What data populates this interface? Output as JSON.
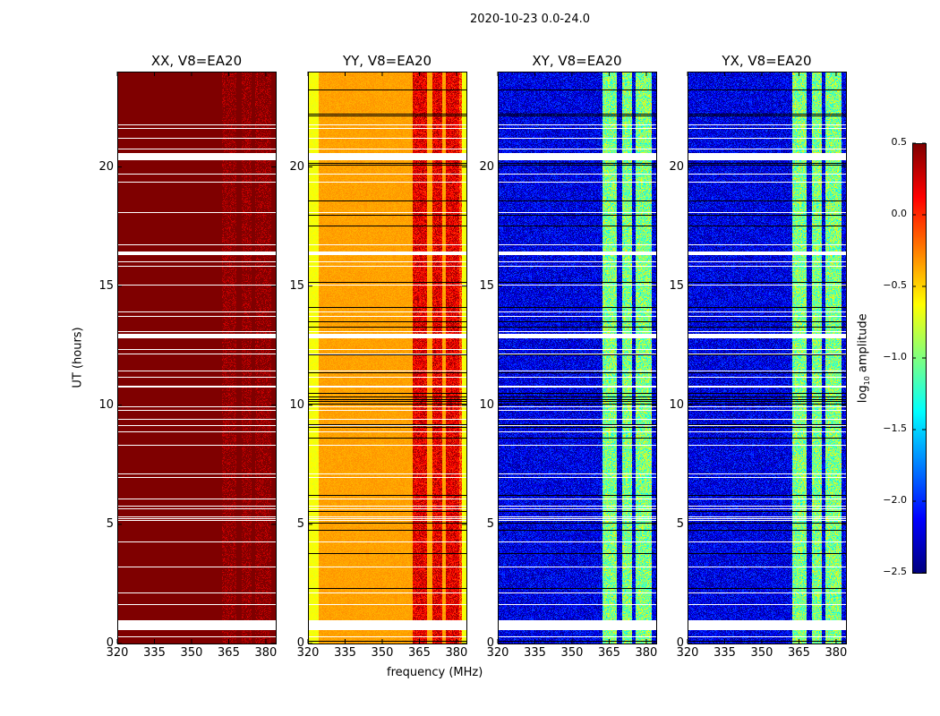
{
  "chart_data": {
    "type": "heatmap",
    "suptitle": "2020-10-23 0.0-24.0",
    "xlabel": "frequency (MHz)",
    "ylabel": "UT (hours)",
    "xlim": [
      320,
      384
    ],
    "ylim": [
      0,
      24
    ],
    "xticks": [
      "320",
      "335",
      "350",
      "365",
      "380"
    ],
    "yticks": [
      "0",
      "5",
      "10",
      "15",
      "20"
    ],
    "xtick_values": [
      320,
      335,
      350,
      365,
      380
    ],
    "ytick_values": [
      0,
      5,
      10,
      15,
      20
    ],
    "panels": [
      {
        "title": "XX, V8=EA20",
        "background_level": 0.5,
        "rfi_level": 0.5
      },
      {
        "title": "YY, V8=EA20",
        "background_level": -0.35,
        "rfi_level": 0.2
      },
      {
        "title": "XY, V8=EA20",
        "background_level": -2.2,
        "rfi_level": -1.0
      },
      {
        "title": "YX, V8=EA20",
        "background_level": -2.2,
        "rfi_level": -1.0
      }
    ],
    "rfi_band_mhz": [
      362,
      382
    ],
    "flagged_hours": [
      [
        0.55,
        0.95
      ],
      [
        20.3,
        20.6
      ],
      [
        12.8,
        13.0
      ],
      [
        16.3,
        16.45
      ]
    ],
    "colorbar": {
      "label": "log10 amplitude",
      "label_main": "log",
      "label_sub": "10",
      "label_rest": " amplitude",
      "colormap": "jet",
      "range": [
        -2.5,
        0.5
      ],
      "ticks": [
        "0.5",
        "0.0",
        "−0.5",
        "−1.0",
        "−1.5",
        "−2.0",
        "−2.5"
      ],
      "tick_values": [
        0.5,
        0.0,
        -0.5,
        -1.0,
        -1.5,
        -2.0,
        -2.5
      ]
    }
  }
}
